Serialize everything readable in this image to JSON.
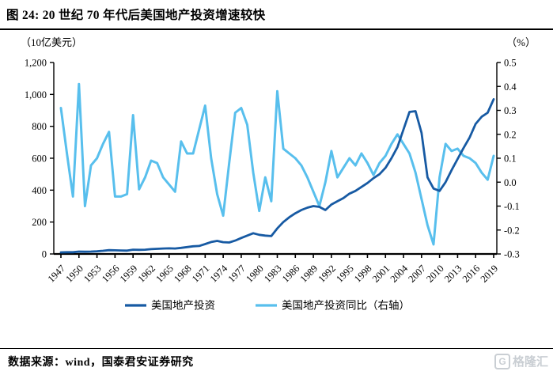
{
  "header": {
    "title": "图 24:  20 世纪 70 年代后美国地产投资增速较快"
  },
  "footer": {
    "source": "数据来源：wind，国泰君安证券研究",
    "logo_letter": "G",
    "logo_text": "格隆汇"
  },
  "chart_data": {
    "type": "line",
    "title": "20 世纪 70 年代后美国地产投资增速较快",
    "grid": false,
    "legend_position": "bottom",
    "left_axis": {
      "unit_label": "（10亿美元）",
      "range": [
        0,
        1200
      ],
      "ticks": [
        {
          "label": "0",
          "value": 0
        },
        {
          "label": "200",
          "value": 200
        },
        {
          "label": "400",
          "value": 400
        },
        {
          "label": "600",
          "value": 600
        },
        {
          "label": "800",
          "value": 800
        },
        {
          "label": "1,000",
          "value": 1000
        },
        {
          "label": "1,200",
          "value": 1200
        }
      ]
    },
    "right_axis": {
      "unit_label": "（%）",
      "range": [
        -0.3,
        0.5
      ],
      "ticks": [
        {
          "label": "0.5",
          "value": 0.5
        },
        {
          "label": "0.4",
          "value": 0.4
        },
        {
          "label": "0.3",
          "value": 0.3
        },
        {
          "label": "0.2",
          "value": 0.2
        },
        {
          "label": "0.1",
          "value": 0.1
        },
        {
          "label": "0.0",
          "value": 0.0
        },
        {
          "label": "-0.1",
          "value": -0.1
        },
        {
          "label": "-0.2",
          "value": -0.2
        },
        {
          "label": "-0.3",
          "value": -0.3
        }
      ]
    },
    "x_tick_labels": [
      "1947",
      "1950",
      "1953",
      "1956",
      "1959",
      "1962",
      "1965",
      "1968",
      "1971",
      "1974",
      "1977",
      "1980",
      "1983",
      "1986",
      "1989",
      "1992",
      "1995",
      "1998",
      "2001",
      "2004",
      "2007",
      "2010",
      "2013",
      "2016",
      "2019"
    ],
    "years": [
      1947,
      1948,
      1949,
      1950,
      1951,
      1952,
      1953,
      1954,
      1955,
      1956,
      1957,
      1958,
      1959,
      1960,
      1961,
      1962,
      1963,
      1964,
      1965,
      1966,
      1967,
      1968,
      1969,
      1970,
      1971,
      1972,
      1973,
      1974,
      1975,
      1976,
      1977,
      1978,
      1979,
      1980,
      1981,
      1982,
      1983,
      1984,
      1985,
      1986,
      1987,
      1988,
      1989,
      1990,
      1991,
      1992,
      1993,
      1994,
      1995,
      1996,
      1997,
      1998,
      1999,
      2000,
      2001,
      2002,
      2003,
      2004,
      2005,
      2006,
      2007,
      2008,
      2009,
      2010,
      2011,
      2012,
      2013,
      2014,
      2015,
      2016,
      2017,
      2018,
      2019
    ],
    "series": [
      {
        "name": "美国地产投资",
        "axis": "left",
        "color": "#175aa3",
        "values": [
          10,
          11,
          11,
          15,
          14,
          15,
          17,
          20,
          24,
          23,
          22,
          21,
          27,
          26,
          27,
          30,
          32,
          34,
          35,
          34,
          38,
          43,
          48,
          50,
          62,
          75,
          82,
          74,
          72,
          84,
          100,
          115,
          130,
          120,
          115,
          112,
          160,
          200,
          230,
          255,
          275,
          290,
          300,
          295,
          275,
          310,
          330,
          350,
          378,
          395,
          420,
          445,
          475,
          500,
          540,
          600,
          670,
          780,
          890,
          895,
          760,
          480,
          410,
          395,
          450,
          525,
          595,
          665,
          730,
          815,
          860,
          885,
          970
        ]
      },
      {
        "name": "美国地产投资同比（右轴）",
        "axis": "right",
        "color": "#58bfed",
        "values": [
          0.31,
          0.12,
          -0.06,
          0.41,
          -0.1,
          0.07,
          0.1,
          0.16,
          0.21,
          -0.06,
          -0.06,
          -0.05,
          0.28,
          -0.03,
          0.02,
          0.09,
          0.08,
          0.02,
          -0.01,
          -0.04,
          0.17,
          0.12,
          0.12,
          0.22,
          0.32,
          0.1,
          -0.05,
          -0.14,
          0.08,
          0.29,
          0.31,
          0.24,
          0.04,
          -0.12,
          0.02,
          -0.08,
          0.38,
          0.14,
          0.12,
          0.1,
          0.07,
          0.02,
          -0.04,
          -0.1,
          0.0,
          0.13,
          0.02,
          0.06,
          0.1,
          0.07,
          0.12,
          0.08,
          0.03,
          0.08,
          0.11,
          0.16,
          0.2,
          0.16,
          0.12,
          0.04,
          -0.07,
          -0.18,
          -0.26,
          0.02,
          0.16,
          0.13,
          0.14,
          0.11,
          0.1,
          0.08,
          0.04,
          0.01,
          0.11
        ]
      }
    ]
  }
}
